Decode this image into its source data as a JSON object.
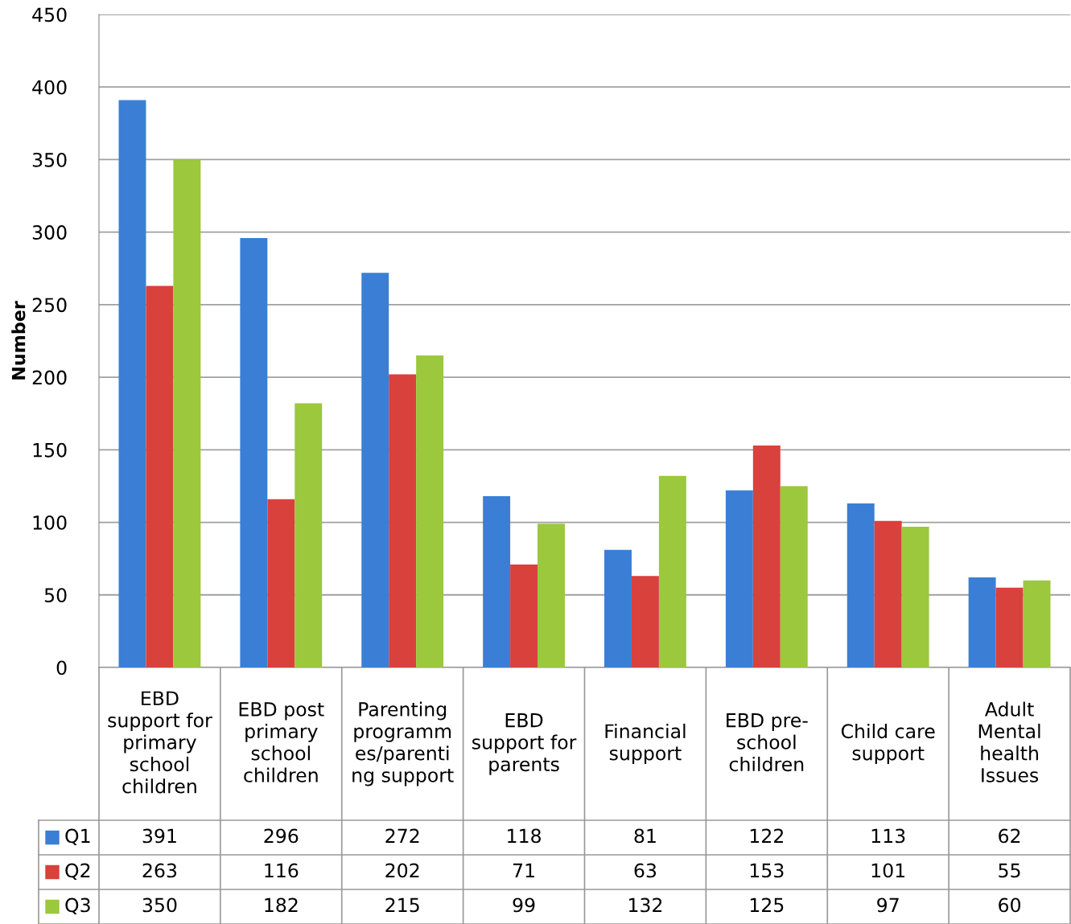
{
  "chart_data": {
    "type": "bar",
    "ylabel": "Number",
    "categories": [
      "EBD\nsupport for\nprimary\nschool\nchildren",
      "EBD post\nprimary\nschool\nchildren",
      "Parenting\nprogramm\nes/parenti\nng support",
      "EBD\nsupport for\nparents",
      "Financial\nsupport",
      "EBD pre-\nschool\nchildren",
      "Child care\nsupport",
      "Adult\nMental\nhealth\nIssues"
    ],
    "series": [
      {
        "name": "Q1",
        "color": "#3a7fd5",
        "values": [
          391,
          296,
          272,
          118,
          81,
          122,
          113,
          62
        ]
      },
      {
        "name": "Q2",
        "color": "#d9413c",
        "values": [
          263,
          116,
          202,
          71,
          63,
          153,
          101,
          55
        ]
      },
      {
        "name": "Q3",
        "color": "#9bc83c",
        "values": [
          350,
          182,
          215,
          99,
          132,
          125,
          97,
          60
        ]
      }
    ],
    "ylim": [
      0,
      450
    ],
    "yticks": [
      0,
      50,
      100,
      150,
      200,
      250,
      300,
      350,
      400,
      450
    ],
    "grid": "y",
    "legend": "bottom",
    "data_labels": true
  }
}
